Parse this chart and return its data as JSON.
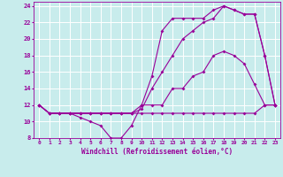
{
  "xlabel": "Windchill (Refroidissement éolien,°C)",
  "background_color": "#c8ecec",
  "line_color": "#990099",
  "grid_color": "#ffffff",
  "xlim": [
    -0.5,
    23.5
  ],
  "ylim": [
    8,
    24.5
  ],
  "xticks": [
    0,
    1,
    2,
    3,
    4,
    5,
    6,
    7,
    8,
    9,
    10,
    11,
    12,
    13,
    14,
    15,
    16,
    17,
    18,
    19,
    20,
    21,
    22,
    23
  ],
  "yticks": [
    8,
    10,
    12,
    14,
    16,
    18,
    20,
    22,
    24
  ],
  "series": [
    {
      "x": [
        0,
        1,
        2,
        3,
        4,
        5,
        6,
        7,
        8,
        9,
        10,
        11,
        12,
        13,
        14,
        15,
        16,
        17,
        18,
        19,
        20,
        21,
        22,
        23
      ],
      "y": [
        12,
        11,
        11,
        11,
        11,
        11,
        11,
        11,
        11,
        11,
        11,
        11,
        11,
        11,
        11,
        11,
        11,
        11,
        11,
        11,
        11,
        11,
        12,
        12
      ]
    },
    {
      "x": [
        0,
        1,
        2,
        3,
        4,
        5,
        6,
        7,
        8,
        9,
        10,
        11,
        12,
        13,
        14,
        15,
        16,
        17,
        18,
        19,
        20,
        21,
        22,
        23
      ],
      "y": [
        12,
        11,
        11,
        11,
        10.5,
        10,
        9.5,
        8,
        8,
        9.5,
        12,
        12,
        12,
        14,
        14,
        15.5,
        16,
        18,
        18.5,
        18,
        17,
        14.5,
        12,
        12
      ]
    },
    {
      "x": [
        0,
        1,
        2,
        3,
        4,
        5,
        6,
        7,
        8,
        9,
        10,
        11,
        12,
        13,
        14,
        15,
        16,
        17,
        18,
        19,
        20,
        21,
        22,
        23
      ],
      "y": [
        12,
        11,
        11,
        11,
        11,
        11,
        11,
        11,
        11,
        11,
        12,
        15.5,
        21,
        22.5,
        22.5,
        22.5,
        22.5,
        23.5,
        24,
        23.5,
        23,
        23,
        18,
        12
      ]
    },
    {
      "x": [
        0,
        1,
        2,
        3,
        4,
        5,
        6,
        7,
        8,
        9,
        10,
        11,
        12,
        13,
        14,
        15,
        16,
        17,
        18,
        19,
        20,
        21,
        22,
        23
      ],
      "y": [
        12,
        11,
        11,
        11,
        11,
        11,
        11,
        11,
        11,
        11,
        11.5,
        14,
        16,
        18,
        20,
        21,
        22,
        22.5,
        24,
        23.5,
        23,
        23,
        18,
        12
      ]
    }
  ]
}
